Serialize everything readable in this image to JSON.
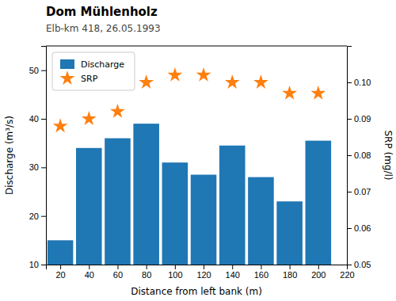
{
  "chart_data": {
    "type": "bar",
    "title": "Dom Mühlenholz",
    "subtitle": "Elb-km 418, 26.05.1993",
    "x_label": "Distance from left bank (m)",
    "y_label": "Discharge (m³/s)",
    "y2_label": "SRP (mg/l)",
    "x": [
      20,
      40,
      60,
      80,
      100,
      120,
      140,
      160,
      180,
      200
    ],
    "series": [
      {
        "name": "Discharge",
        "type": "bar",
        "values": [
          15,
          34,
          36,
          39,
          31,
          28.5,
          34.5,
          28,
          23,
          35.5
        ]
      },
      {
        "name": "SRP",
        "type": "scatter",
        "marker": "star",
        "axis": "y2",
        "values": [
          0.088,
          0.09,
          0.092,
          0.1,
          0.102,
          0.102,
          0.1,
          0.1,
          0.097,
          0.097
        ]
      }
    ],
    "xlim": [
      10,
      220
    ],
    "xticks": [
      20,
      40,
      60,
      80,
      100,
      120,
      140,
      160,
      180,
      200,
      220
    ],
    "ylim": [
      10,
      55
    ],
    "yticks": [
      10,
      20,
      30,
      40,
      50
    ],
    "y2lim": [
      0.05,
      0.11
    ],
    "y2ticks": [
      0.05,
      0.06,
      0.07,
      0.08,
      0.09,
      {
        "value": 0.1,
        "label": "0.10"
      }
    ],
    "grid": false,
    "legend": "upper left"
  }
}
